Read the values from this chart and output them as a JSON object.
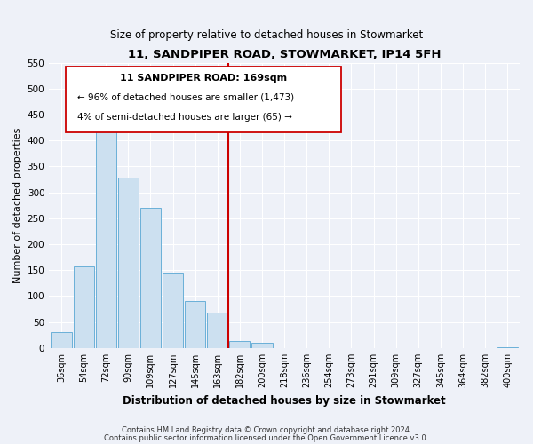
{
  "title": "11, SANDPIPER ROAD, STOWMARKET, IP14 5FH",
  "subtitle": "Size of property relative to detached houses in Stowmarket",
  "xlabel": "Distribution of detached houses by size in Stowmarket",
  "ylabel": "Number of detached properties",
  "bar_labels": [
    "36sqm",
    "54sqm",
    "72sqm",
    "90sqm",
    "109sqm",
    "127sqm",
    "145sqm",
    "163sqm",
    "182sqm",
    "200sqm",
    "218sqm",
    "236sqm",
    "254sqm",
    "273sqm",
    "291sqm",
    "309sqm",
    "327sqm",
    "345sqm",
    "364sqm",
    "382sqm",
    "400sqm"
  ],
  "bar_values": [
    30,
    157,
    425,
    329,
    271,
    146,
    91,
    68,
    13,
    10,
    0,
    0,
    0,
    0,
    0,
    0,
    0,
    0,
    0,
    0,
    2
  ],
  "bar_color": "#cce0f0",
  "bar_edge_color": "#6ab0d8",
  "vline_color": "#cc0000",
  "ylim": [
    0,
    550
  ],
  "yticks": [
    0,
    50,
    100,
    150,
    200,
    250,
    300,
    350,
    400,
    450,
    500,
    550
  ],
  "annotation_title": "11 SANDPIPER ROAD: 169sqm",
  "annotation_line1": "← 96% of detached houses are smaller (1,473)",
  "annotation_line2": "4% of semi-detached houses are larger (65) →",
  "footer_line1": "Contains HM Land Registry data © Crown copyright and database right 2024.",
  "footer_line2": "Contains public sector information licensed under the Open Government Licence v3.0.",
  "bg_color": "#eef1f8",
  "grid_color": "#d0d8e8"
}
